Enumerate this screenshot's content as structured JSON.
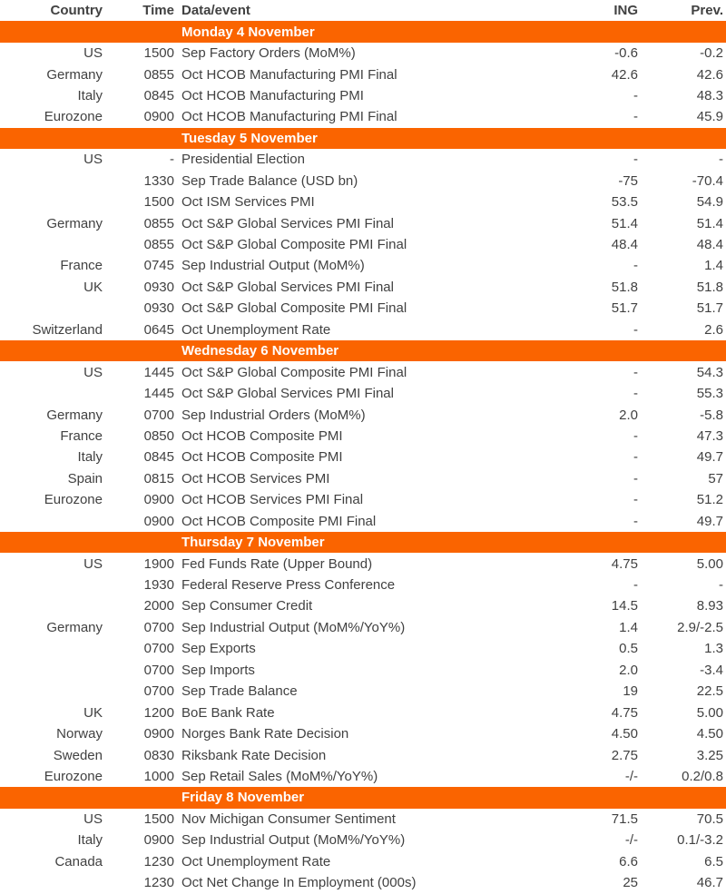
{
  "table": {
    "colors": {
      "accent": "#fa6400",
      "text": "#414141",
      "band_text": "#ffffff"
    },
    "headers": {
      "country": "Country",
      "time": "Time",
      "event": "Data/event",
      "ing": "ING",
      "prev": "Prev."
    },
    "sections": [
      {
        "title": "Monday 4 November",
        "rows": [
          {
            "country": "US",
            "time": "1500",
            "event": "Sep Factory Orders (MoM%)",
            "ing": "-0.6",
            "prev": "-0.2"
          },
          {
            "country": "Germany",
            "time": "0855",
            "event": "Oct HCOB Manufacturing PMI Final",
            "ing": "42.6",
            "prev": "42.6"
          },
          {
            "country": "Italy",
            "time": "0845",
            "event": "Oct HCOB Manufacturing PMI",
            "ing": "-",
            "prev": "48.3"
          },
          {
            "country": "Eurozone",
            "time": "0900",
            "event": "Oct HCOB Manufacturing PMI Final",
            "ing": "-",
            "prev": "45.9"
          }
        ]
      },
      {
        "title": "Tuesday 5 November",
        "rows": [
          {
            "country": "US",
            "time": "-",
            "event": "Presidential Election",
            "ing": "-",
            "prev": "-"
          },
          {
            "country": "",
            "time": "1330",
            "event": "Sep Trade Balance (USD bn)",
            "ing": "-75",
            "prev": "-70.4"
          },
          {
            "country": "",
            "time": "1500",
            "event": "Oct ISM Services PMI",
            "ing": "53.5",
            "prev": "54.9"
          },
          {
            "country": "Germany",
            "time": "0855",
            "event": "Oct S&P Global Services PMI Final",
            "ing": "51.4",
            "prev": "51.4"
          },
          {
            "country": "",
            "time": "0855",
            "event": "Oct S&P Global Composite PMI Final",
            "ing": "48.4",
            "prev": "48.4"
          },
          {
            "country": "France",
            "time": "0745",
            "event": "Sep Industrial Output (MoM%)",
            "ing": "-",
            "prev": "1.4"
          },
          {
            "country": "UK",
            "time": "0930",
            "event": "Oct S&P Global Services PMI Final",
            "ing": "51.8",
            "prev": "51.8"
          },
          {
            "country": "",
            "time": "0930",
            "event": "Oct S&P Global Composite PMI Final",
            "ing": "51.7",
            "prev": "51.7"
          },
          {
            "country": "Switzerland",
            "time": "0645",
            "event": "Oct Unemployment Rate",
            "ing": "-",
            "prev": "2.6"
          }
        ]
      },
      {
        "title": "Wednesday 6 November",
        "rows": [
          {
            "country": "US",
            "time": "1445",
            "event": "Oct S&P Global Composite PMI Final",
            "ing": "-",
            "prev": "54.3"
          },
          {
            "country": "",
            "time": "1445",
            "event": "Oct S&P Global Services PMI Final",
            "ing": "-",
            "prev": "55.3"
          },
          {
            "country": "Germany",
            "time": "0700",
            "event": "Sep Industrial Orders (MoM%)",
            "ing": "2.0",
            "prev": "-5.8"
          },
          {
            "country": "France",
            "time": "0850",
            "event": "Oct HCOB Composite PMI",
            "ing": "-",
            "prev": "47.3"
          },
          {
            "country": "Italy",
            "time": "0845",
            "event": "Oct HCOB Composite PMI",
            "ing": "-",
            "prev": "49.7"
          },
          {
            "country": "Spain",
            "time": "0815",
            "event": "Oct HCOB Services PMI",
            "ing": "-",
            "prev": "57"
          },
          {
            "country": "Eurozone",
            "time": "0900",
            "event": "Oct HCOB Services PMI Final",
            "ing": "-",
            "prev": "51.2"
          },
          {
            "country": "",
            "time": "0900",
            "event": "Oct HCOB Composite PMI Final",
            "ing": "-",
            "prev": "49.7"
          }
        ]
      },
      {
        "title": "Thursday 7 November",
        "rows": [
          {
            "country": "US",
            "time": "1900",
            "event": "Fed Funds Rate (Upper Bound)",
            "ing": "4.75",
            "prev": "5.00"
          },
          {
            "country": "",
            "time": "1930",
            "event": "Federal Reserve Press Conference",
            "ing": "-",
            "prev": "-"
          },
          {
            "country": "",
            "time": "2000",
            "event": "Sep Consumer Credit",
            "ing": "14.5",
            "prev": "8.93"
          },
          {
            "country": "Germany",
            "time": "0700",
            "event": "Sep Industrial Output (MoM%/YoY%)",
            "ing": "1.4",
            "prev": "2.9/-2.5"
          },
          {
            "country": "",
            "time": "0700",
            "event": "Sep Exports",
            "ing": "0.5",
            "prev": "1.3"
          },
          {
            "country": "",
            "time": "0700",
            "event": "Sep Imports",
            "ing": "2.0",
            "prev": "-3.4"
          },
          {
            "country": "",
            "time": "0700",
            "event": "Sep Trade Balance",
            "ing": "19",
            "prev": "22.5"
          },
          {
            "country": "UK",
            "time": "1200",
            "event": "BoE Bank Rate",
            "ing": "4.75",
            "prev": "5.00"
          },
          {
            "country": "Norway",
            "time": "0900",
            "event": "Norges Bank Rate Decision",
            "ing": "4.50",
            "prev": "4.50"
          },
          {
            "country": "Sweden",
            "time": "0830",
            "event": "Riksbank Rate Decision",
            "ing": "2.75",
            "prev": "3.25"
          },
          {
            "country": "Eurozone",
            "time": "1000",
            "event": "Sep Retail Sales (MoM%/YoY%)",
            "ing": "-/-",
            "prev": "0.2/0.8"
          }
        ]
      },
      {
        "title": "Friday 8 November",
        "rows": [
          {
            "country": "US",
            "time": "1500",
            "event": "Nov Michigan Consumer Sentiment",
            "ing": "71.5",
            "prev": "70.5"
          },
          {
            "country": "Italy",
            "time": "0900",
            "event": "Sep Industrial Output (MoM%/YoY%)",
            "ing": "-/-",
            "prev": "0.1/-3.2"
          },
          {
            "country": "Canada",
            "time": "1230",
            "event": "Oct Unemployment Rate",
            "ing": "6.6",
            "prev": "6.5"
          },
          {
            "country": "",
            "time": "1230",
            "event": "Oct Net Change In Employment (000s)",
            "ing": "25",
            "prev": "46.7"
          }
        ]
      }
    ]
  }
}
